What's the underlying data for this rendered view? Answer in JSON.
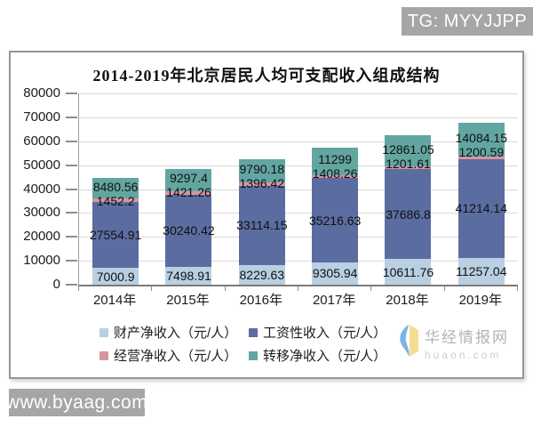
{
  "overlays": {
    "tg_badge": "TG: MYYJJPP",
    "site_badge": "www.byaag.com",
    "badge_bg": "#a6a6a6"
  },
  "watermark": {
    "brand": "华经情报网",
    "domain": "huaon.com",
    "logo_blue": "#7cb4e4",
    "logo_yellow": "#f7dc94"
  },
  "chart_data": {
    "type": "bar",
    "stacked": true,
    "title": "2014-2019年北京居民人均可支配收入组成结构",
    "categories": [
      "2014年",
      "2015年",
      "2016年",
      "2017年",
      "2018年",
      "2019年"
    ],
    "series": [
      {
        "name": "财产净收入（元/人）",
        "color": "#b9cfe2",
        "values": [
          7000.9,
          7498.91,
          8229.63,
          9305.94,
          10611.76,
          11257.04
        ]
      },
      {
        "name": "工资性收入（元/人）",
        "color": "#5b6da0",
        "values": [
          27554.91,
          30240.42,
          33114.15,
          35216.63,
          37686.8,
          41214.14
        ]
      },
      {
        "name": "经营净收入（元/人）",
        "color": "#d795a2",
        "values": [
          1452.2,
          1421.26,
          1396.42,
          1408.26,
          1201.61,
          1200.59
        ]
      },
      {
        "name": "转移净收入（元/人）",
        "color": "#62a5a1",
        "values": [
          8480.56,
          9297.4,
          9790.18,
          11299,
          12861.05,
          14084.15
        ]
      }
    ],
    "ylim": [
      0,
      80000
    ],
    "yticks": [
      0,
      10000,
      20000,
      30000,
      40000,
      50000,
      60000,
      70000,
      80000
    ],
    "grid": true,
    "value_labels": true,
    "legend_position": "bottom",
    "legend_columns": 2
  }
}
